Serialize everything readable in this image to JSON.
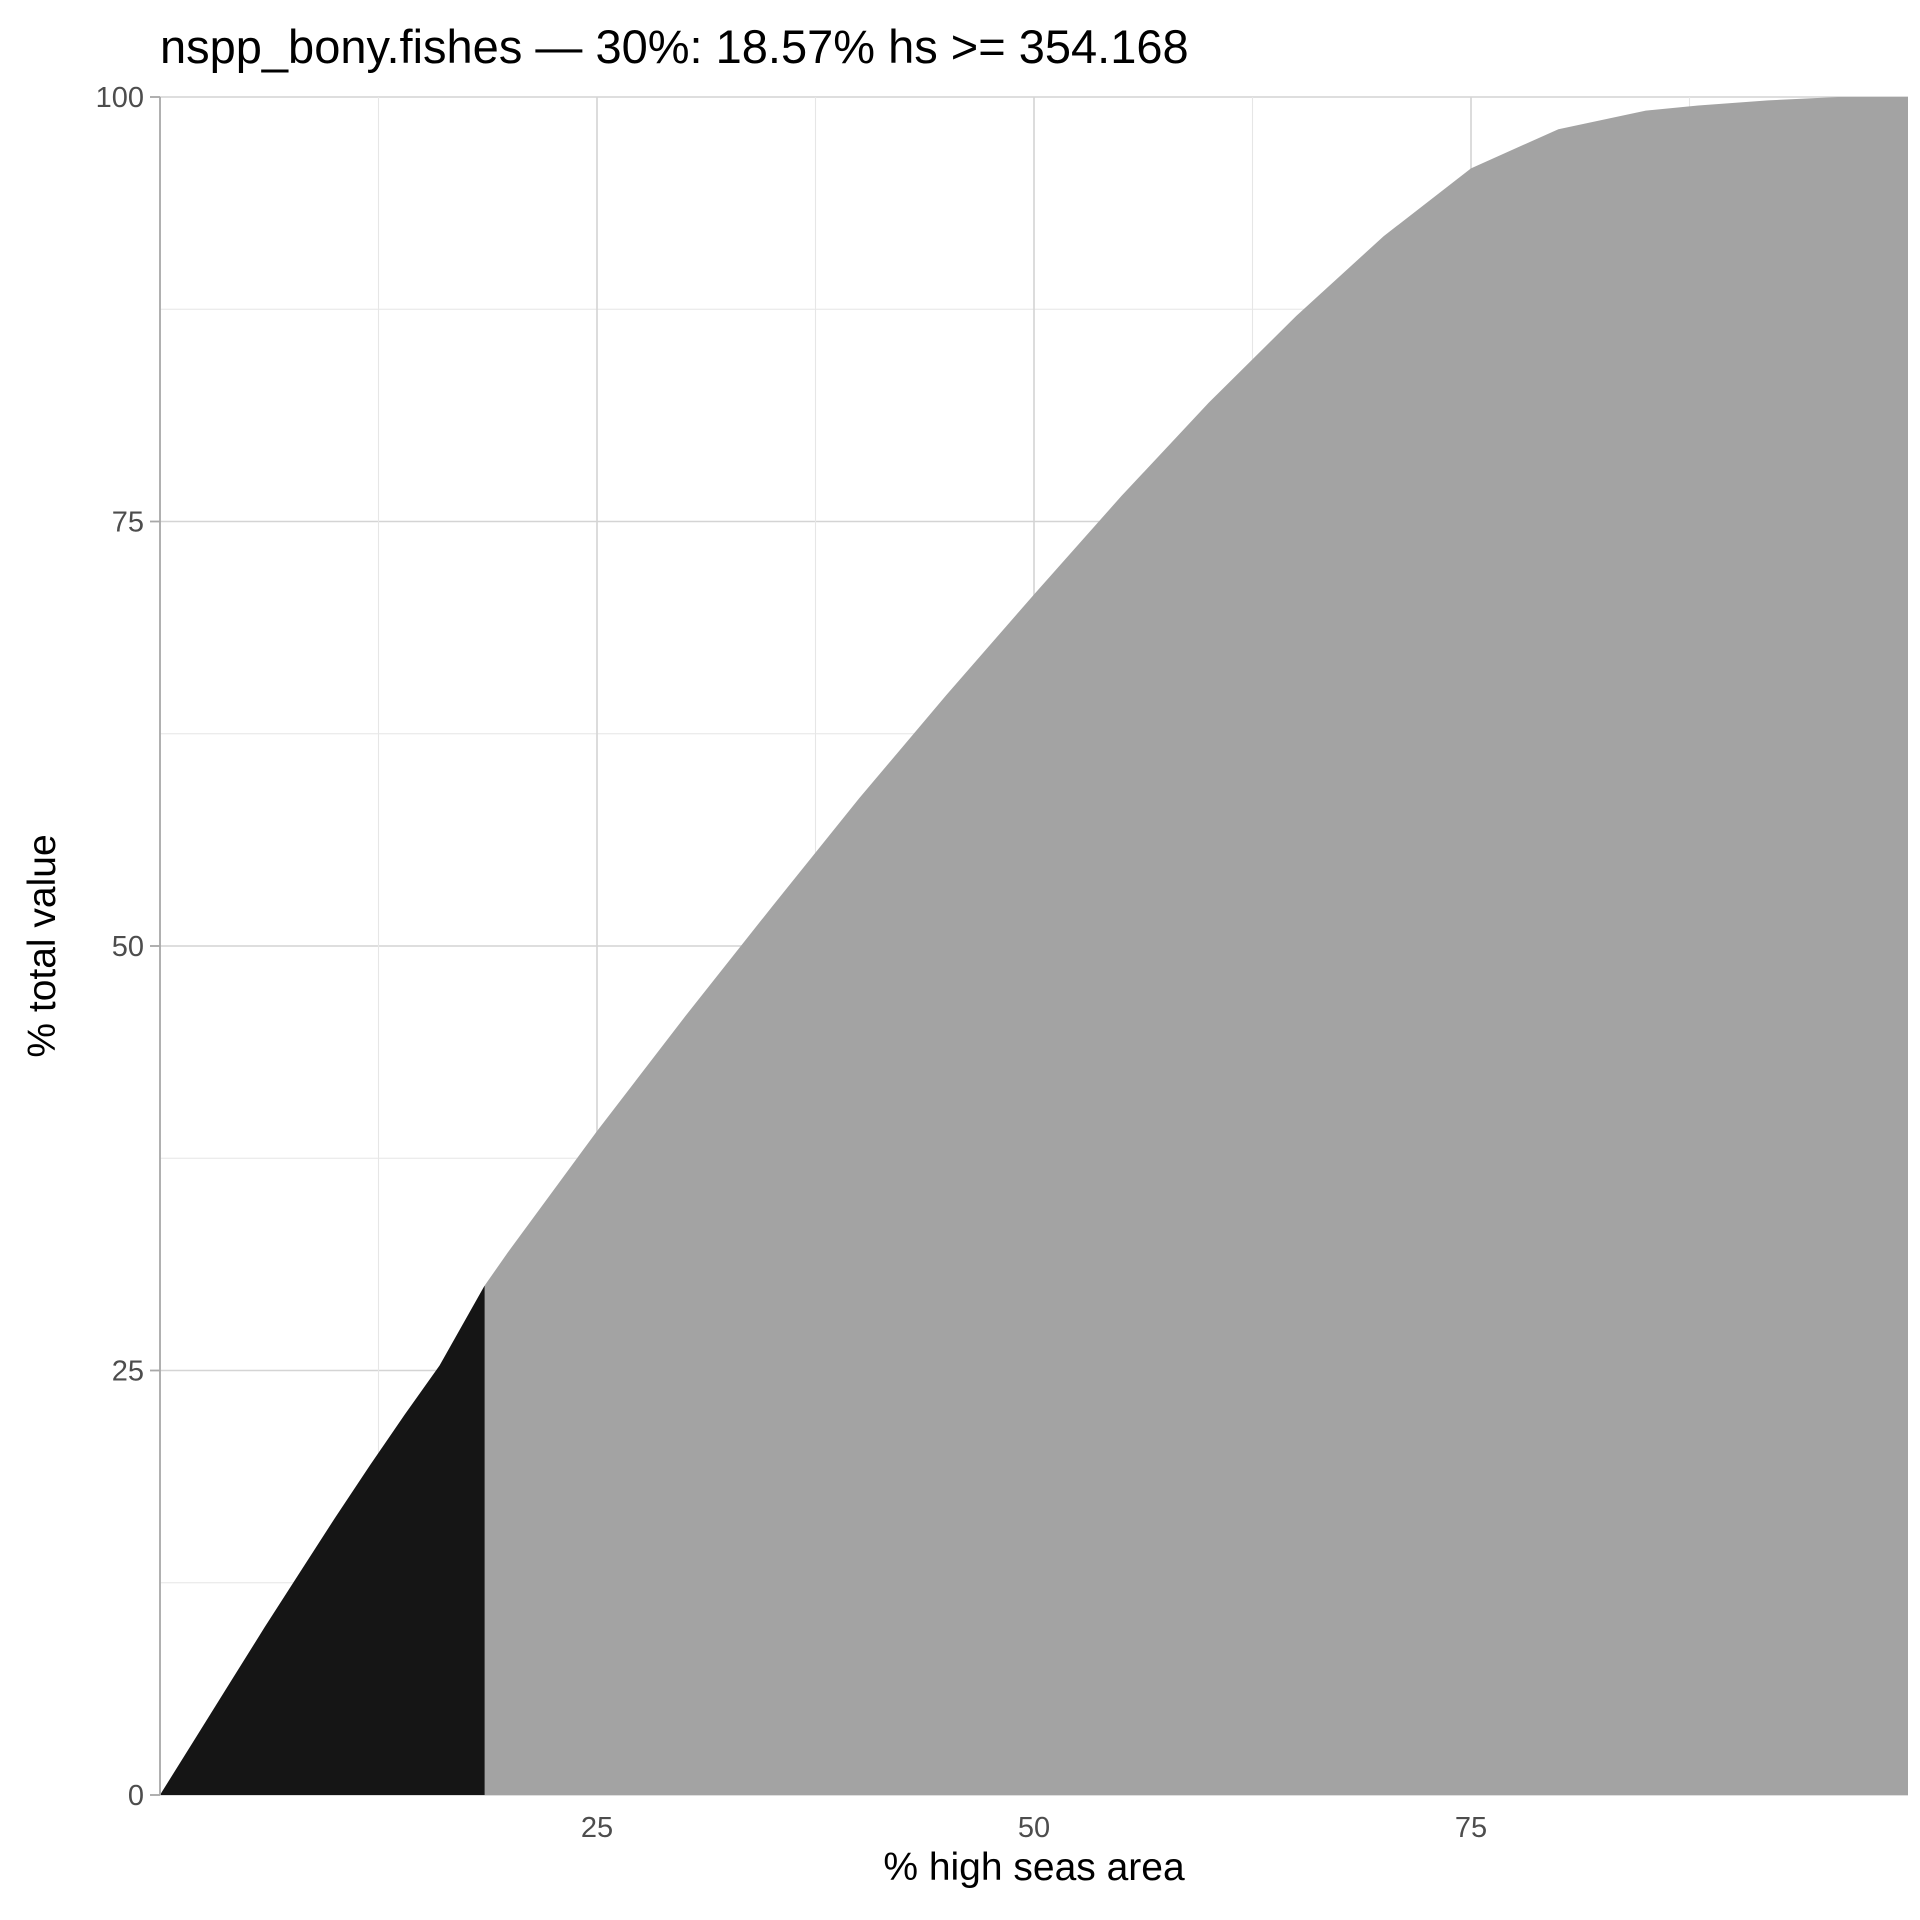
{
  "chart_data": {
    "type": "area",
    "title": "nspp_bony.fishes — 30%: 18.57% hs >= 354.168",
    "xlabel": "% high seas area",
    "ylabel": "% total value",
    "xlim": [
      0,
      100
    ],
    "ylim": [
      0,
      100
    ],
    "x_ticks": [
      25,
      50,
      75
    ],
    "x_tick_labels": [
      "25",
      "50",
      "75"
    ],
    "y_ticks": [
      0,
      25,
      50,
      75,
      100
    ],
    "y_tick_labels": [
      "0",
      "25",
      "50",
      "75",
      "100"
    ],
    "grid": true,
    "legend": "none",
    "threshold_x": 18.57,
    "threshold_y": 30,
    "colors": {
      "highlight": "#151515",
      "rest": "#a3a3a3"
    },
    "x": [
      0,
      2,
      4,
      6,
      8,
      10,
      12,
      14,
      16,
      18.57,
      20,
      25,
      30,
      35,
      40,
      45,
      50,
      55,
      60,
      65,
      70,
      75,
      80,
      85,
      88,
      92,
      96,
      100
    ],
    "y": [
      0,
      3.3,
      6.6,
      9.9,
      13.1,
      16.3,
      19.4,
      22.4,
      25.3,
      30,
      32.1,
      39.1,
      45.8,
      52.3,
      58.7,
      64.8,
      70.7,
      76.5,
      82,
      87.1,
      91.8,
      95.8,
      98.1,
      99.2,
      99.5,
      99.8,
      100,
      100
    ]
  }
}
